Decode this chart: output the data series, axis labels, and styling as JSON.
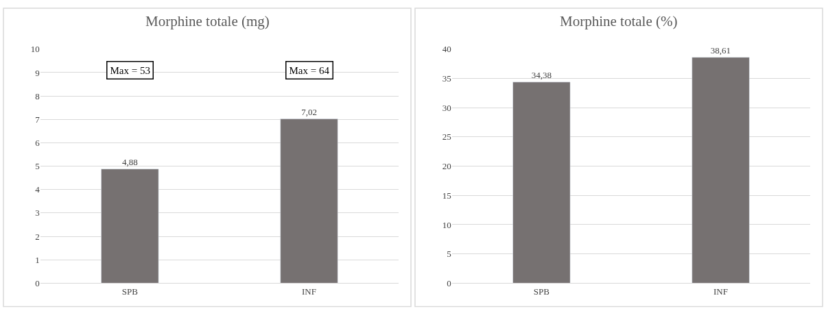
{
  "chart_data": [
    {
      "type": "bar",
      "title": "Morphine totale (mg)",
      "categories": [
        "SPB",
        "INF"
      ],
      "values": [
        4.88,
        7.02
      ],
      "value_labels": [
        "4,88",
        "7,02"
      ],
      "color": "#767171",
      "ylim": [
        0,
        10
      ],
      "yticks": [
        0,
        1,
        2,
        3,
        4,
        5,
        6,
        7,
        8,
        9,
        10
      ],
      "grid": "y",
      "annotations": [
        "Max = 53",
        "Max = 64"
      ]
    },
    {
      "type": "bar",
      "title": "Morphine totale (%)",
      "categories": [
        "SPB",
        "INF"
      ],
      "values": [
        34.38,
        38.61
      ],
      "value_labels": [
        "34,38",
        "38,61"
      ],
      "color": "#767171",
      "ylim": [
        0,
        40
      ],
      "yticks": [
        0,
        5,
        10,
        15,
        20,
        25,
        30,
        35,
        40
      ],
      "grid": "y"
    }
  ]
}
